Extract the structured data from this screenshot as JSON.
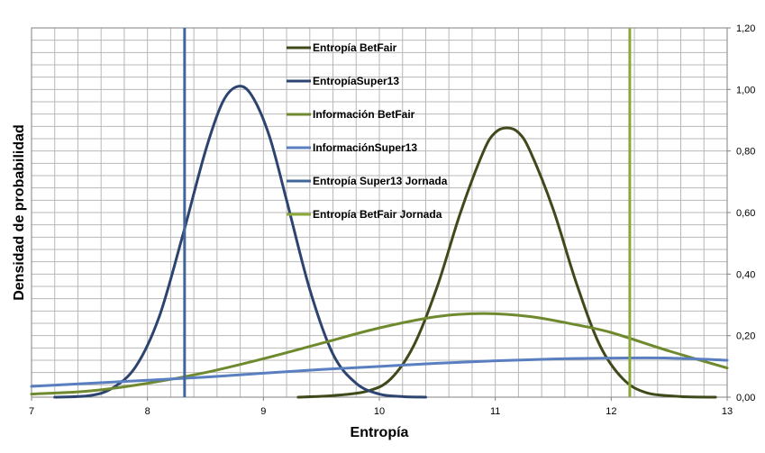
{
  "chart_data": {
    "type": "line",
    "xlabel": "Entropía",
    "ylabel": "Densidad de probabilidad",
    "xlim": [
      7,
      13
    ],
    "ylim": [
      0,
      1.2
    ],
    "x_ticks": [
      "7",
      "8",
      "9",
      "10",
      "11",
      "12",
      "13"
    ],
    "y_ticks": [
      "0,00",
      "0,20",
      "0,40",
      "0,60",
      "0,80",
      "1,00",
      "1,20"
    ],
    "y_axis_side": "right",
    "grid": true,
    "legend_position": "top-center",
    "series": [
      {
        "name": "Entropía BetFair",
        "color": "#3f4a1a",
        "kind": "curve",
        "x": [
          9.3,
          9.6,
          9.9,
          10.1,
          10.3,
          10.5,
          10.7,
          10.9,
          11.0,
          11.1,
          11.2,
          11.3,
          11.5,
          11.7,
          11.9,
          12.1,
          12.3,
          12.6,
          12.9
        ],
        "y": [
          0.0,
          0.005,
          0.02,
          0.06,
          0.17,
          0.36,
          0.6,
          0.8,
          0.86,
          0.875,
          0.86,
          0.8,
          0.61,
          0.37,
          0.17,
          0.06,
          0.015,
          0.002,
          0.0
        ]
      },
      {
        "name": "EntropíaSuper13",
        "color": "#2d4470",
        "kind": "curve",
        "x": [
          7.2,
          7.5,
          7.7,
          7.9,
          8.1,
          8.3,
          8.5,
          8.65,
          8.78,
          8.9,
          9.05,
          9.2,
          9.4,
          9.6,
          9.8,
          10.0,
          10.2,
          10.4
        ],
        "y": [
          0.0,
          0.005,
          0.03,
          0.1,
          0.26,
          0.52,
          0.8,
          0.96,
          1.01,
          0.98,
          0.85,
          0.64,
          0.35,
          0.14,
          0.045,
          0.01,
          0.002,
          0.0
        ]
      },
      {
        "name": "Información BetFair",
        "color": "#6f8a2e",
        "kind": "curve",
        "x": [
          7.0,
          7.5,
          8.0,
          8.5,
          9.0,
          9.5,
          10.0,
          10.5,
          10.9,
          11.3,
          11.7,
          12.0,
          12.5,
          13.0
        ],
        "y": [
          0.01,
          0.02,
          0.045,
          0.08,
          0.125,
          0.175,
          0.225,
          0.262,
          0.272,
          0.262,
          0.235,
          0.21,
          0.15,
          0.095
        ]
      },
      {
        "name": "InformaciónSuper13",
        "color": "#5a7fc0",
        "kind": "curve",
        "x": [
          7.0,
          7.5,
          8.0,
          8.5,
          9.0,
          9.5,
          10.0,
          10.5,
          11.0,
          11.5,
          12.0,
          12.5,
          13.0
        ],
        "y": [
          0.035,
          0.045,
          0.055,
          0.065,
          0.078,
          0.09,
          0.1,
          0.11,
          0.118,
          0.124,
          0.127,
          0.127,
          0.12
        ]
      },
      {
        "name": "Entropía Super13 Jornada",
        "color": "#41679a",
        "kind": "vline",
        "x": [
          8.32
        ],
        "y": [
          1.2
        ]
      },
      {
        "name": "Entropía BetFair Jornada",
        "color": "#8aa93a",
        "kind": "vline",
        "x": [
          12.16
        ],
        "y": [
          1.2
        ]
      }
    ]
  }
}
